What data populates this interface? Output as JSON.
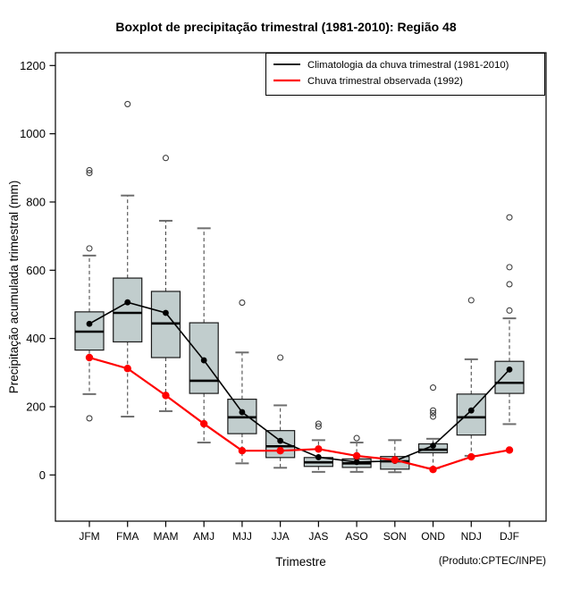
{
  "title": "Boxplot de precipitação trimestral (1981-2010): Região 48",
  "credit": "(Produto:CPTEC/INPE)",
  "chart_data": {
    "type": "boxplot",
    "title": "Boxplot de precipitação trimestral (1981-2010): Região 48",
    "xlabel": "Trimestre",
    "ylabel": "Precipitação acumulada trimestral (mm)",
    "ylim": [
      0,
      1200
    ],
    "y_ticks": [
      0,
      200,
      400,
      600,
      800,
      1000,
      1200
    ],
    "grid": false,
    "categories": [
      "JFM",
      "FMA",
      "MAM",
      "AMJ",
      "MJJ",
      "JJA",
      "JAS",
      "ASO",
      "SON",
      "OND",
      "NDJ",
      "DJF"
    ],
    "box_fill": "#C1CDCD",
    "legend": {
      "position": "top-right",
      "entries": [
        {
          "label": "Climatologia da chuva trimestral (1981-2010)",
          "color": "#000000"
        },
        {
          "label": "Chuva trimestral observada (1992)",
          "color": "#FF0000"
        }
      ]
    },
    "boxes": [
      {
        "category": "JFM",
        "whisker_low": 237,
        "q1": 366,
        "median": 420,
        "q3": 478,
        "whisker_high": 643,
        "outliers": [
          166,
          664,
          885,
          893
        ]
      },
      {
        "category": "FMA",
        "whisker_low": 171,
        "q1": 390,
        "median": 475,
        "q3": 577,
        "whisker_high": 819,
        "outliers": [
          1087
        ]
      },
      {
        "category": "MAM",
        "whisker_low": 187,
        "q1": 344,
        "median": 444,
        "q3": 538,
        "whisker_high": 745,
        "outliers": [
          929
        ]
      },
      {
        "category": "AMJ",
        "whisker_low": 95,
        "q1": 239,
        "median": 276,
        "q3": 446,
        "whisker_high": 723,
        "outliers": []
      },
      {
        "category": "MJJ",
        "whisker_low": 34,
        "q1": 121,
        "median": 169,
        "q3": 222,
        "whisker_high": 359,
        "outliers": [
          505
        ]
      },
      {
        "category": "JJA",
        "whisker_low": 21,
        "q1": 51,
        "median": 84,
        "q3": 130,
        "whisker_high": 204,
        "outliers": [
          344
        ]
      },
      {
        "category": "JAS",
        "whisker_low": 9,
        "q1": 25,
        "median": 37,
        "q3": 51,
        "whisker_high": 102,
        "outliers": [
          142,
          150
        ]
      },
      {
        "category": "ASO",
        "whisker_low": 9,
        "q1": 22,
        "median": 34,
        "q3": 47,
        "whisker_high": 95,
        "outliers": [
          108
        ]
      },
      {
        "category": "SON",
        "whisker_low": 8,
        "q1": 17,
        "median": 40,
        "q3": 54,
        "whisker_high": 102,
        "outliers": []
      },
      {
        "category": "OND",
        "whisker_low": 20,
        "q1": 65,
        "median": 74,
        "q3": 91,
        "whisker_high": 106,
        "outliers": [
          171,
          181,
          189,
          256
        ]
      },
      {
        "category": "NDJ",
        "whisker_low": 56,
        "q1": 117,
        "median": 169,
        "q3": 237,
        "whisker_high": 339,
        "outliers": [
          512
        ]
      },
      {
        "category": "DJF",
        "whisker_low": 149,
        "q1": 239,
        "median": 270,
        "q3": 333,
        "whisker_high": 459,
        "outliers": [
          482,
          559,
          609,
          755
        ]
      }
    ],
    "series": [
      {
        "name": "Climatologia da chuva trimestral (1981-2010)",
        "color": "#000000",
        "values": [
          443,
          506,
          475,
          336,
          184,
          100,
          52,
          38,
          41,
          86,
          189,
          309
        ]
      },
      {
        "name": "Chuva trimestral observada (1992)",
        "color": "#FF0000",
        "values": [
          344,
          312,
          233,
          150,
          71,
          71,
          76,
          56,
          44,
          16,
          53,
          73
        ]
      }
    ]
  }
}
